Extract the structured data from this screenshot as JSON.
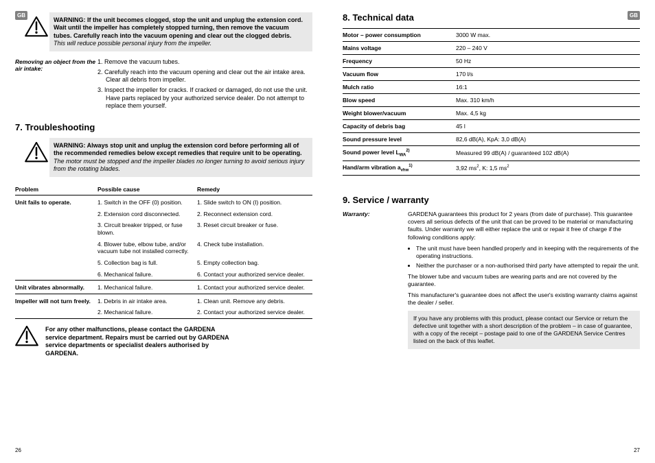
{
  "gb": "GB",
  "pageLeft": 26,
  "pageRight": 27,
  "warn1": {
    "prefix": "WARNING: ",
    "bold": "If the unit becomes clogged, stop the unit and unplug the extension cord. Wait until the impeller has completely stopped turning, then remove the vacuum tubes. Carefully reach into the vacuum opening and clear out the clogged debris.",
    "italic": "This will reduce possible personal injury from the impeller."
  },
  "removing": {
    "label": "Removing an object from the air intake:",
    "items": [
      "1. Remove the vacuum tubes.",
      "2. Carefully reach into the vacuum opening and clear out the air intake area. Clear all debris from impeller.",
      "3. Inspect the impeller for cracks. If cracked or damaged, do not use the unit. Have parts replaced by your authorized service dealer. Do not attempt to replace them yourself."
    ]
  },
  "h7": "7. Troubleshooting",
  "warn2": {
    "prefix": "WARNING: ",
    "bold": "Always stop unit and unplug the extension cord before performing all of the recommended remedies below except remedies that require unit to be operating.",
    "italic": "The motor must be stopped and the impeller blades no longer turning to avoid serious injury from the rotating blades."
  },
  "troubleCols": [
    "Problem",
    "Possible cause",
    "Remedy"
  ],
  "trouble": [
    {
      "problem": "Unit fails to operate.",
      "rows": [
        [
          "1. Switch in the OFF (0) position.",
          "1. Slide switch to ON (I) position."
        ],
        [
          "2. Extension cord disconnected.",
          "2. Reconnect extension cord."
        ],
        [
          "3. Circuit breaker tripped, or fuse blown.",
          "3. Reset circuit breaker or fuse."
        ],
        [
          "4. Blower tube, elbow tube, and/or vacuum tube not installed correctly.",
          "4. Check tube installation."
        ],
        [
          "5. Collection bag is full.",
          "5. Empty collection bag."
        ],
        [
          "6. Mechanical failure.",
          "6. Contact your authorized service dealer."
        ]
      ]
    },
    {
      "problem": "Unit vibrates abnormally.",
      "rows": [
        [
          "1. Mechanical failure.",
          "1. Contact your authorized service dealer."
        ]
      ]
    },
    {
      "problem": "Impeller will not turn freely.",
      "rows": [
        [
          "1. Debris in air intake area.",
          "1. Clean unit. Remove any debris."
        ],
        [
          "2. Mechanical failure.",
          "2. Contact your authorized service dealer."
        ]
      ]
    }
  ],
  "note": "For any other malfunctions, please contact the GARDENA service department. Repairs must be carried out by GARDENA service departments or specialist dealers authorised by GARDENA.",
  "h8": "8. Technical data",
  "tech": [
    [
      "Motor – power consumption",
      "3000 W max."
    ],
    [
      "Mains voltage",
      "220 – 240 V"
    ],
    [
      "Frequency",
      "50 Hz"
    ],
    [
      "Vacuum flow",
      "170 l/s"
    ],
    [
      "Mulch ratio",
      "16:1"
    ],
    [
      "Blow speed",
      "Max. 310 km/h"
    ],
    [
      "Weight blower/vacuum",
      "Max. 4,5 kg"
    ],
    [
      "Capacity of debris bag",
      "45 l"
    ],
    [
      "Sound pressure level",
      "82,6 dB(A), KpA: 3,0 dB(A)"
    ],
    [
      "Sound power level L<sub>WA</sub><sup>2)</sup>",
      "Measured 99 dB(A) / guaranteed 102 dB(A)"
    ],
    [
      "Hand/arm vibration a<sub>vhw</sub><sup>1)</sup>",
      "3,92 ms<sup>2</sup>, K: 1,5 ms<sup>2</sup>"
    ]
  ],
  "h9": "9. Service / warranty",
  "warranty": {
    "label": "Warranty:",
    "p1": "GARDENA guarantees this product for 2 years (from date of purchase). This guarantee covers all serious defects of the unit that can be proved to be material or manufacturing faults. Under warranty we will either replace the unit or repair it free of charge if the following conditions apply:",
    "bullets": [
      "The unit must have been handled properly and in keeping with the requirements of the operating instructions.",
      "Neither the purchaser or a non-authorised third party have attempted to repair the unit."
    ],
    "p2": "The blower tube and vacuum tubes are wearing parts and are not covered by the guarantee.",
    "p3": "This manufacturer's guarantee does not affect the user's existing warranty claims against the dealer / seller.",
    "contact": "If you have any problems with this product, please contact our Service or return the defective unit together with a short description of the problem – in case of guarantee, with a copy of the receipt – postage paid to one of the GARDENA Service Centres listed on the back of this leaflet."
  }
}
